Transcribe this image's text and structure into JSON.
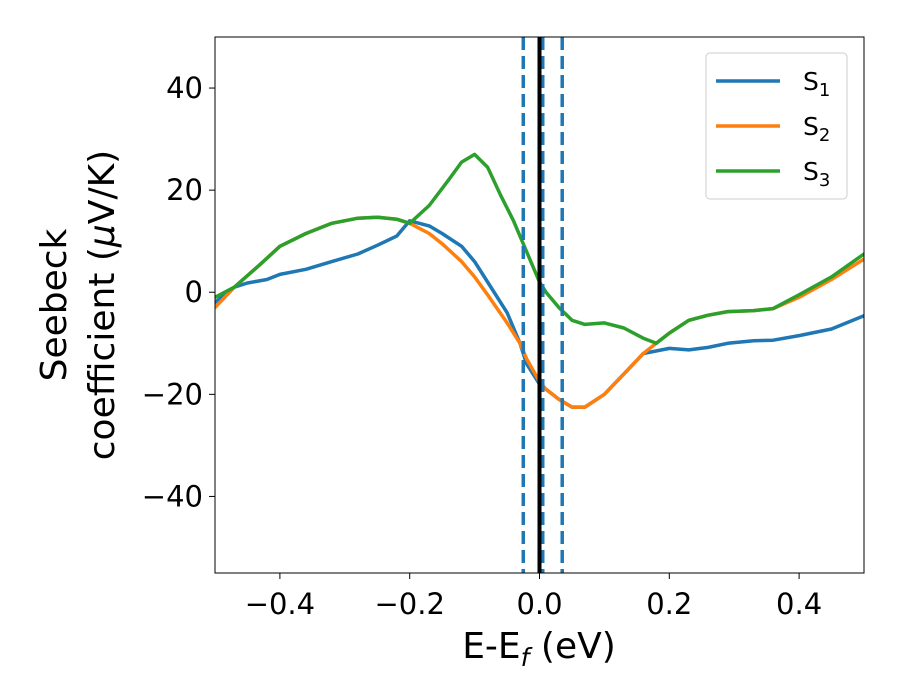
{
  "chart_data": {
    "type": "line",
    "xlabel": "E-E",
    "xlabel_sub": "f",
    "xlabel_unit": " (eV)",
    "ylabel_line1": "Seebeck",
    "ylabel_line2": "coefficient  (",
    "ylabel_mu": "μ",
    "ylabel_unit": "V/K)",
    "xlim": [
      -0.5,
      0.5
    ],
    "ylim": [
      -55,
      50
    ],
    "x_ticks": [
      -0.4,
      -0.2,
      0.0,
      0.2,
      0.4
    ],
    "x_tick_labels": [
      "−0.4",
      "−0.2",
      "0.0",
      "0.2",
      "0.4"
    ],
    "y_ticks": [
      -40,
      -20,
      0,
      20,
      40
    ],
    "y_tick_labels": [
      "−40",
      "−20",
      "0",
      "20",
      "40"
    ],
    "grid": false,
    "legend_position": "top-right",
    "series": [
      {
        "name": "S",
        "sub": "1",
        "color": "#1f77b4",
        "points": [
          [
            -0.5,
            -2
          ],
          [
            -0.47,
            1
          ],
          [
            -0.45,
            1.8
          ],
          [
            -0.42,
            2.5
          ],
          [
            -0.4,
            3.5
          ],
          [
            -0.36,
            4.5
          ],
          [
            -0.32,
            6
          ],
          [
            -0.28,
            7.5
          ],
          [
            -0.25,
            9.2
          ],
          [
            -0.22,
            11
          ],
          [
            -0.2,
            14
          ],
          [
            -0.17,
            13
          ],
          [
            -0.15,
            11.5
          ],
          [
            -0.12,
            9
          ],
          [
            -0.1,
            6
          ],
          [
            -0.08,
            2
          ],
          [
            -0.05,
            -4
          ],
          [
            -0.03,
            -10
          ],
          [
            -0.02,
            -14
          ],
          [
            0.0,
            -18
          ],
          [
            0.01,
            -19
          ],
          [
            0.03,
            -21
          ],
          [
            0.05,
            -22.5
          ],
          [
            0.07,
            -22.5
          ],
          [
            0.1,
            -20
          ],
          [
            0.13,
            -16
          ],
          [
            0.16,
            -12
          ],
          [
            0.2,
            -11
          ],
          [
            0.23,
            -11.3
          ],
          [
            0.26,
            -10.8
          ],
          [
            0.29,
            -10
          ],
          [
            0.33,
            -9.5
          ],
          [
            0.36,
            -9.4
          ],
          [
            0.4,
            -8.5
          ],
          [
            0.45,
            -7.2
          ],
          [
            0.5,
            -4.6
          ]
        ]
      },
      {
        "name": "S",
        "sub": "2",
        "color": "#ff7f0e",
        "points": [
          [
            -0.5,
            -3
          ],
          [
            -0.47,
            1
          ],
          [
            -0.43,
            5.5
          ],
          [
            -0.4,
            9
          ],
          [
            -0.36,
            11.5
          ],
          [
            -0.32,
            13.5
          ],
          [
            -0.28,
            14.5
          ],
          [
            -0.25,
            14.7
          ],
          [
            -0.22,
            14.3
          ],
          [
            -0.2,
            13.5
          ],
          [
            -0.17,
            11.5
          ],
          [
            -0.15,
            9.5
          ],
          [
            -0.12,
            6
          ],
          [
            -0.1,
            3
          ],
          [
            -0.08,
            -0.5
          ],
          [
            -0.05,
            -6
          ],
          [
            -0.03,
            -10
          ],
          [
            -0.02,
            -13
          ],
          [
            0.0,
            -17.5
          ],
          [
            0.01,
            -19
          ],
          [
            0.03,
            -21
          ],
          [
            0.05,
            -22.5
          ],
          [
            0.07,
            -22.5
          ],
          [
            0.1,
            -20
          ],
          [
            0.13,
            -16
          ],
          [
            0.16,
            -12
          ],
          [
            0.18,
            -10
          ],
          [
            0.2,
            -8
          ],
          [
            0.23,
            -5.5
          ],
          [
            0.26,
            -4.5
          ],
          [
            0.29,
            -3.8
          ],
          [
            0.33,
            -3.6
          ],
          [
            0.36,
            -3.2
          ],
          [
            0.4,
            -1
          ],
          [
            0.45,
            2.5
          ],
          [
            0.5,
            6.5
          ]
        ]
      },
      {
        "name": "S",
        "sub": "3",
        "color": "#2ca02c",
        "points": [
          [
            -0.5,
            -1
          ],
          [
            -0.47,
            1
          ],
          [
            -0.43,
            5.5
          ],
          [
            -0.4,
            9
          ],
          [
            -0.36,
            11.5
          ],
          [
            -0.32,
            13.5
          ],
          [
            -0.28,
            14.5
          ],
          [
            -0.25,
            14.7
          ],
          [
            -0.22,
            14.3
          ],
          [
            -0.2,
            13.5
          ],
          [
            -0.17,
            17
          ],
          [
            -0.14,
            22
          ],
          [
            -0.12,
            25.5
          ],
          [
            -0.1,
            27
          ],
          [
            -0.08,
            24.5
          ],
          [
            -0.06,
            19
          ],
          [
            -0.04,
            14
          ],
          [
            -0.02,
            8
          ],
          [
            0.0,
            2
          ],
          [
            0.01,
            0
          ],
          [
            0.03,
            -3
          ],
          [
            0.05,
            -5.5
          ],
          [
            0.07,
            -6.3
          ],
          [
            0.1,
            -6
          ],
          [
            0.13,
            -7
          ],
          [
            0.16,
            -9
          ],
          [
            0.18,
            -10
          ],
          [
            0.2,
            -8
          ],
          [
            0.23,
            -5.5
          ],
          [
            0.26,
            -4.5
          ],
          [
            0.29,
            -3.8
          ],
          [
            0.33,
            -3.6
          ],
          [
            0.36,
            -3.2
          ],
          [
            0.4,
            -0.5
          ],
          [
            0.45,
            3
          ],
          [
            0.5,
            7.5
          ]
        ]
      }
    ],
    "vlines": [
      {
        "x": -0.025,
        "style": "dashed",
        "color": "#1f77b4"
      },
      {
        "x": 0.005,
        "style": "dashed",
        "color": "#1f77b4"
      },
      {
        "x": 0.035,
        "style": "dashed",
        "color": "#1f77b4"
      },
      {
        "x": 0.0,
        "style": "solid",
        "color": "#000000"
      }
    ]
  }
}
